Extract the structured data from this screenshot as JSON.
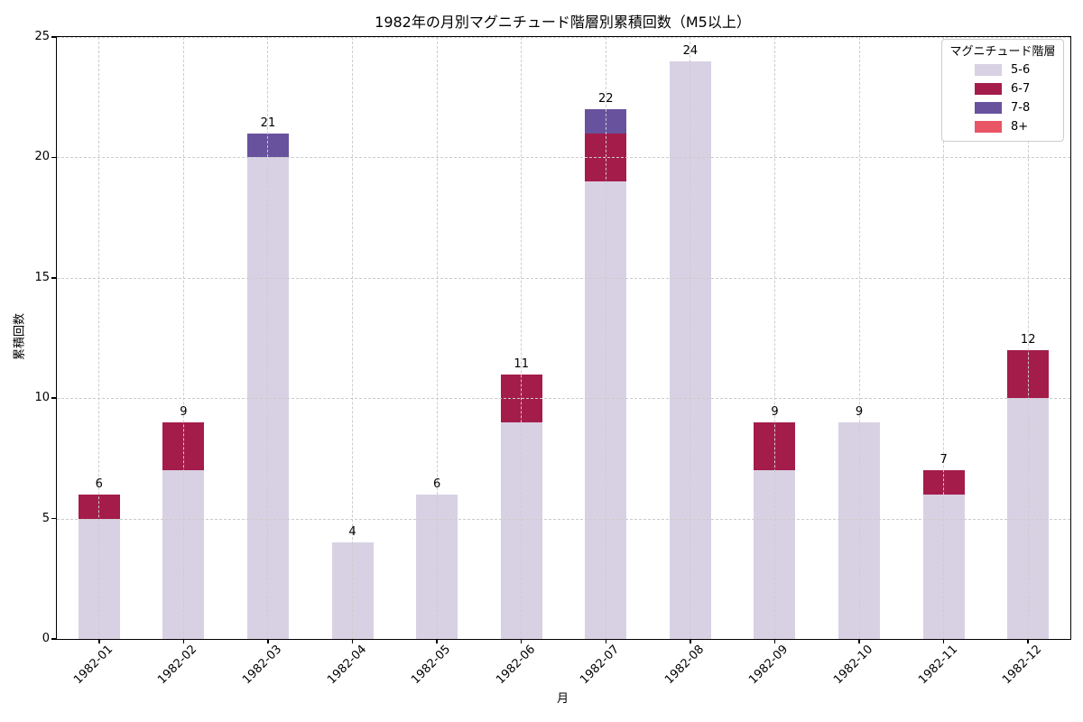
{
  "title": "1982年の月別マグニチュード階層別累積回数（M5以上）",
  "x_axis_label": "月",
  "y_axis_label": "累積回数",
  "legend": {
    "title": "マグニチュード階層",
    "entries": [
      {
        "label": "5-6",
        "color": "#d8d1e4"
      },
      {
        "label": "6-7",
        "color": "#a41c4a"
      },
      {
        "label": "7-8",
        "color": "#68529e"
      },
      {
        "label": "8+",
        "color": "#e85666"
      }
    ]
  },
  "chart_data": {
    "type": "bar",
    "stacked": true,
    "title": "1982年の月別マグニチュード階層別累積回数（M5以上）",
    "xlabel": "月",
    "ylabel": "累積回数",
    "categories": [
      "1982-01",
      "1982-02",
      "1982-03",
      "1982-04",
      "1982-05",
      "1982-06",
      "1982-07",
      "1982-08",
      "1982-09",
      "1982-10",
      "1982-11",
      "1982-12"
    ],
    "series": [
      {
        "name": "5-6",
        "color": "#d8d1e4",
        "values": [
          5,
          7,
          20,
          4,
          6,
          9,
          19,
          24,
          7,
          9,
          6,
          10
        ]
      },
      {
        "name": "6-7",
        "color": "#a41c4a",
        "values": [
          1,
          2,
          0,
          0,
          0,
          2,
          2,
          0,
          2,
          0,
          1,
          2
        ]
      },
      {
        "name": "7-8",
        "color": "#68529e",
        "values": [
          0,
          0,
          1,
          0,
          0,
          0,
          1,
          0,
          0,
          0,
          0,
          0
        ]
      },
      {
        "name": "8+",
        "color": "#e85666",
        "values": [
          0,
          0,
          0,
          0,
          0,
          0,
          0,
          0,
          0,
          0,
          0,
          0
        ]
      }
    ],
    "totals": [
      6,
      9,
      21,
      4,
      6,
      11,
      22,
      24,
      9,
      9,
      7,
      12
    ],
    "y_ticks": [
      0,
      5,
      10,
      15,
      20,
      25
    ],
    "ylim": [
      0,
      25
    ],
    "grid": true,
    "grid_style": "dashed",
    "legend_title": "マグニチュード階層",
    "legend_position": "upper right"
  }
}
